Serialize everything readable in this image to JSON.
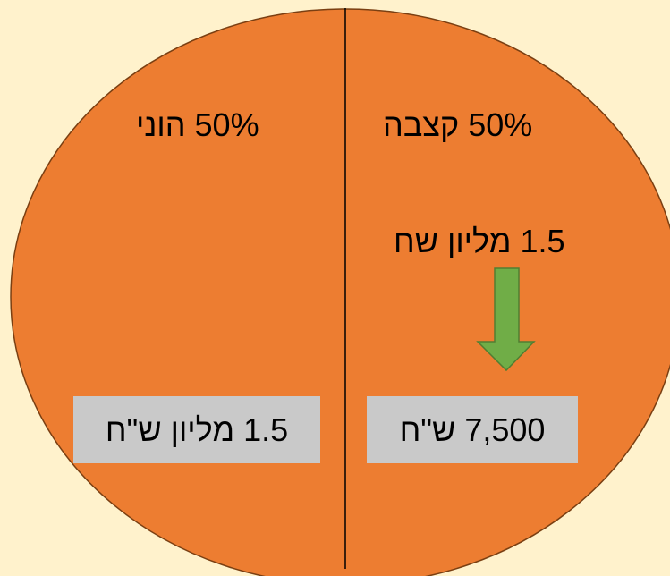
{
  "left_section": {
    "label": "50% הוני",
    "amount": "1.5 מליון ש\"ח"
  },
  "right_section": {
    "label": "50% קצבה",
    "lump_sum": "1.5 מליון שח",
    "amount": "7,500 ש\"ח"
  }
}
